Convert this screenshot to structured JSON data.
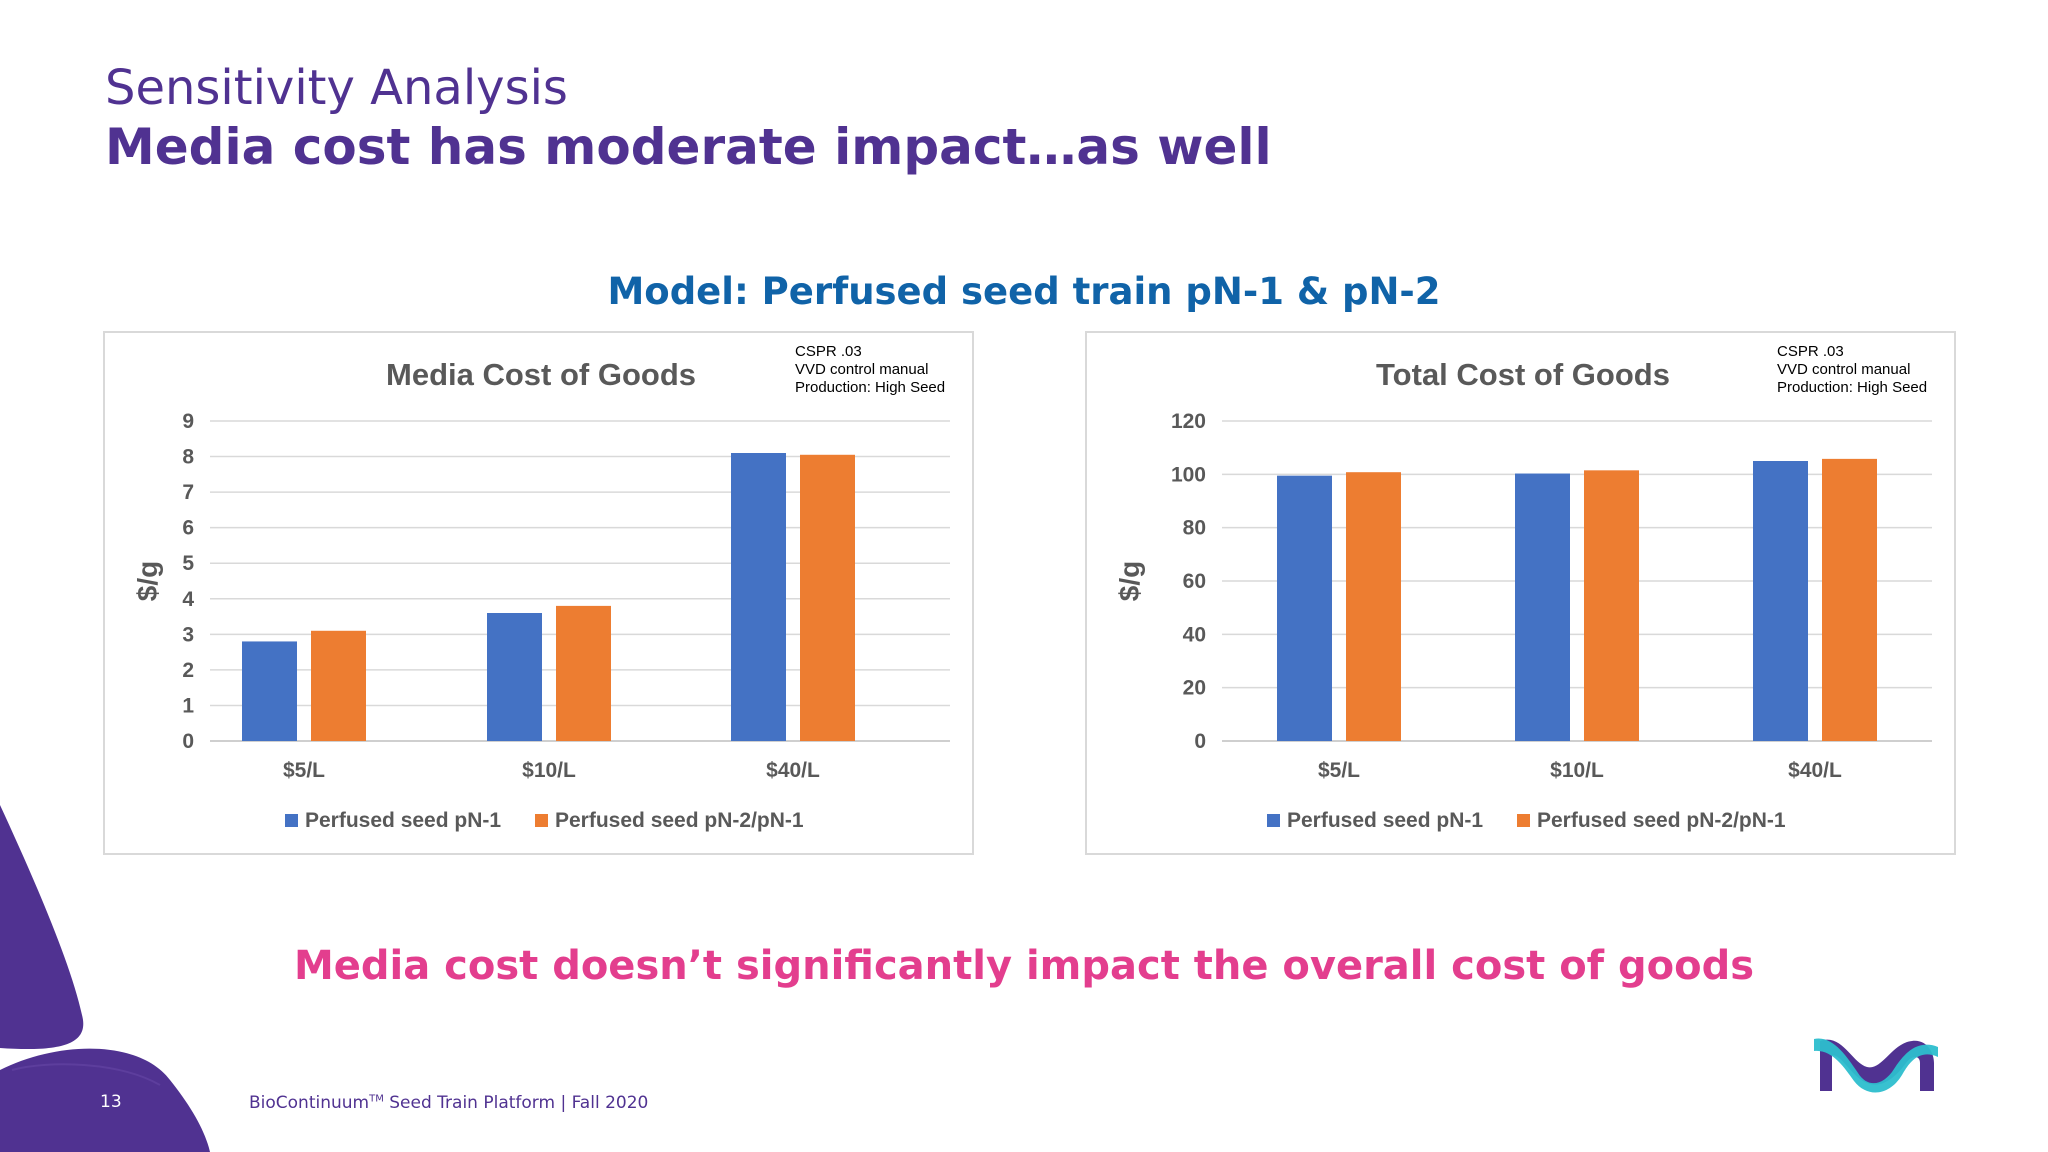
{
  "slide": {
    "title": "Sensitivity Analysis",
    "subtitle": "Media cost has moderate impact…as well",
    "model_title": "Model: Perfused seed train pN-1 & pN-2",
    "conclusion": "Media cost doesn’t significantly impact the overall cost of goods",
    "page_number": "13",
    "footer_prefix": "BioContinuum",
    "footer_tm": "TM",
    "footer_suffix": " Seed Train Platform | Fall 2020"
  },
  "notes": {
    "left": [
      "CSPR .03",
      "VVD control manual",
      "Production: High Seed"
    ],
    "right": [
      "CSPR .03",
      "VVD control manual",
      "Production: High Seed"
    ]
  },
  "colors": {
    "series1": "#4472c4",
    "series2": "#ed7d31",
    "brand_purple": "#503291",
    "accent_pink": "#e33e8e",
    "model_blue": "#1063a8"
  },
  "chart_data": [
    {
      "type": "bar",
      "title": "Media Cost of Goods",
      "ylabel": "$/g",
      "xlabel": "",
      "categories": [
        "$5/L",
        "$10/L",
        "$40/L"
      ],
      "series": [
        {
          "name": "Perfused seed pN-1",
          "values": [
            2.8,
            3.6,
            8.1
          ]
        },
        {
          "name": "Perfused seed pN-2/pN-1",
          "values": [
            3.1,
            3.8,
            8.05
          ]
        }
      ],
      "ylim": [
        0,
        9
      ],
      "yticks": [
        0,
        1,
        2,
        3,
        4,
        5,
        6,
        7,
        8,
        9
      ],
      "grid": true,
      "legend": "bottom"
    },
    {
      "type": "bar",
      "title": "Total Cost of Goods",
      "ylabel": "$/g",
      "xlabel": "",
      "categories": [
        "$5/L",
        "$10/L",
        "$40/L"
      ],
      "series": [
        {
          "name": "Perfused seed pN-1",
          "values": [
            99.5,
            100.3,
            105
          ]
        },
        {
          "name": "Perfused seed pN-2/pN-1",
          "values": [
            100.8,
            101.5,
            105.8
          ]
        }
      ],
      "ylim": [
        0,
        120
      ],
      "yticks": [
        0,
        20,
        40,
        60,
        80,
        100,
        120
      ],
      "grid": true,
      "legend": "bottom"
    }
  ]
}
